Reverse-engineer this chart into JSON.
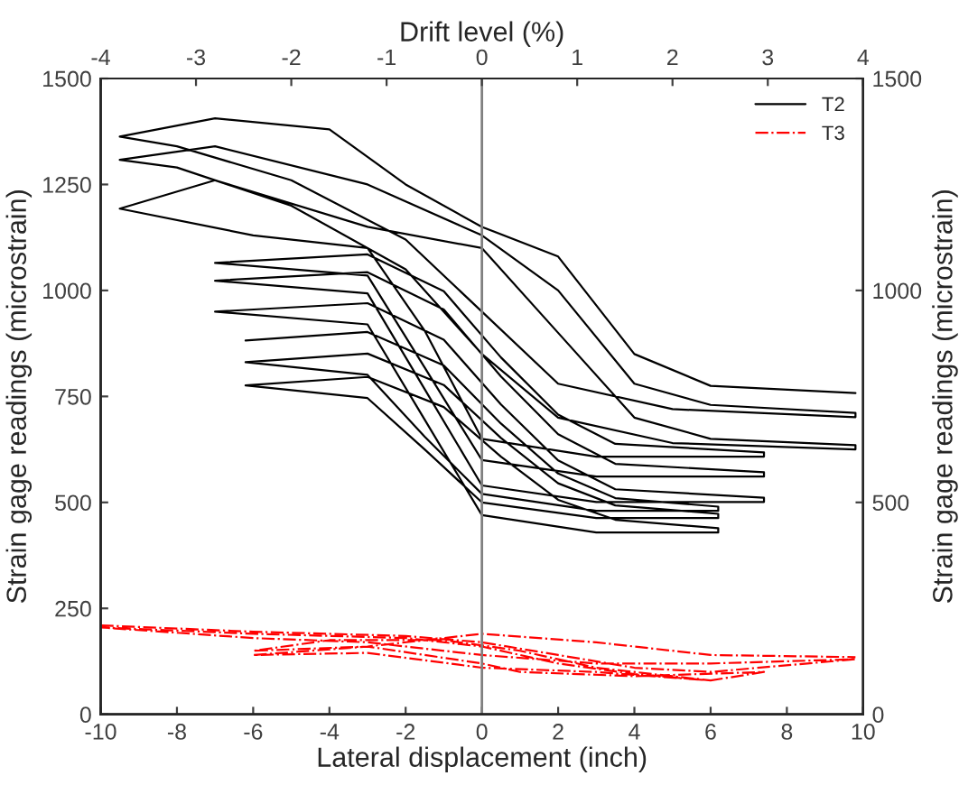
{
  "chart_data": {
    "type": "line",
    "xlabel": "Lateral displacement (inch)",
    "ylabel": "Strain gage readings (microstrain)",
    "x2label": "Drift level (%)",
    "y2label": "Strain gage readings (microstrain)",
    "xlim": [
      -10,
      10
    ],
    "xticks": [
      -10,
      -8,
      -6,
      -4,
      -2,
      0,
      2,
      4,
      6,
      8,
      10
    ],
    "ylim": [
      0,
      1500
    ],
    "yticks": [
      0,
      250,
      500,
      750,
      1000,
      1250,
      1500
    ],
    "x2lim": [
      -4,
      4
    ],
    "x2ticks": [
      -4,
      -3,
      -2,
      -1,
      0,
      1,
      2,
      3,
      4
    ],
    "y2lim": [
      0,
      1500
    ],
    "y2ticks": [
      0,
      500,
      1000,
      1500
    ],
    "grid": false,
    "legend": "top right",
    "marker": "none",
    "ref_lines": [
      {
        "axis": "x",
        "value": 0,
        "color": "#808080",
        "line_style": "solid"
      }
    ],
    "series": [
      {
        "name": "T2",
        "color": "#000000",
        "line_style": "solid",
        "x": [
          -6.2,
          -3,
          -1,
          0.5,
          2,
          3.5,
          6.2,
          6.2,
          3,
          0,
          -1.5,
          -3,
          -6.2,
          -3,
          -1,
          0.5,
          2,
          3.5,
          6.2,
          6.2,
          3,
          0,
          -1.5,
          -3,
          -6.2,
          -3,
          -1,
          0.5,
          2,
          3.5,
          6.2,
          6.2,
          3,
          0,
          -1.5,
          -3,
          -7,
          -3,
          -1,
          0.5,
          2,
          3.5,
          7.4,
          7.4,
          3,
          0,
          -1.5,
          -3,
          -7,
          -3,
          -1,
          0.5,
          2,
          3.5,
          7.4,
          7.4,
          3,
          0,
          -1.5,
          -3,
          -7,
          -3,
          -1,
          0.5,
          2,
          3.5,
          7.4,
          7.4,
          3,
          0,
          -1.5,
          -3,
          -6,
          -9.5,
          -7,
          -3,
          0,
          2,
          4,
          6,
          9.8,
          9.8,
          5,
          2,
          0,
          -2,
          -5,
          -8,
          -9.5,
          -7,
          -3,
          0,
          2,
          4,
          6,
          9.8,
          9.8,
          5,
          2,
          0,
          -2,
          -5,
          -8,
          -9.5,
          -7,
          -4,
          -2,
          0,
          2,
          4,
          6,
          9.8
        ],
        "values": [
          882,
          902,
          823,
          686,
          568,
          510,
          490,
          480,
          480,
          520,
          655,
          801,
          831,
          851,
          777,
          652,
          545,
          493,
          473,
          463,
          463,
          500,
          625,
          746,
          776,
          796,
          725,
          608,
          506,
          459,
          439,
          429,
          429,
          470,
          695,
          920,
          950,
          970,
          884,
          731,
          599,
          531,
          511,
          501,
          501,
          540,
          767,
          993,
          1023,
          1043,
          955,
          797,
          661,
          591,
          571,
          561,
          561,
          600,
          818,
          1035,
          1065,
          1085,
          998,
          842,
          707,
          638,
          618,
          608,
          608,
          650,
          905,
          1100,
          1130,
          1193,
          1260,
          1150,
          1100,
          900,
          700,
          650,
          635,
          625,
          640,
          700,
          850,
          1050,
          1200,
          1290,
          1308,
          1340,
          1250,
          1130,
          1000,
          780,
          730,
          711,
          701,
          720,
          780,
          950,
          1120,
          1260,
          1340,
          1363,
          1406,
          1380,
          1250,
          1150,
          1080,
          850,
          775,
          758
        ]
      },
      {
        "name": "T3",
        "color": "#ff0000",
        "line_style": "dashdot",
        "x": [
          -10,
          -6,
          -2,
          0,
          2,
          4,
          6,
          9.8,
          6,
          3,
          0,
          -3,
          -6,
          -10,
          -6,
          -2,
          0,
          2,
          4,
          6,
          7.4,
          4,
          1,
          0,
          -3,
          -6,
          -4,
          -1,
          1,
          3,
          5,
          6,
          3,
          0,
          -3,
          -6,
          -3,
          0,
          3,
          6,
          9.8
        ],
        "values": [
          210,
          195,
          185,
          170,
          140,
          110,
          100,
          130,
          120,
          120,
          140,
          170,
          180,
          205,
          190,
          180,
          160,
          120,
          95,
          80,
          100,
          90,
          100,
          120,
          160,
          150,
          175,
          175,
          150,
          110,
          90,
          80,
          100,
          110,
          145,
          140,
          160,
          190,
          170,
          140,
          135
        ]
      }
    ]
  }
}
